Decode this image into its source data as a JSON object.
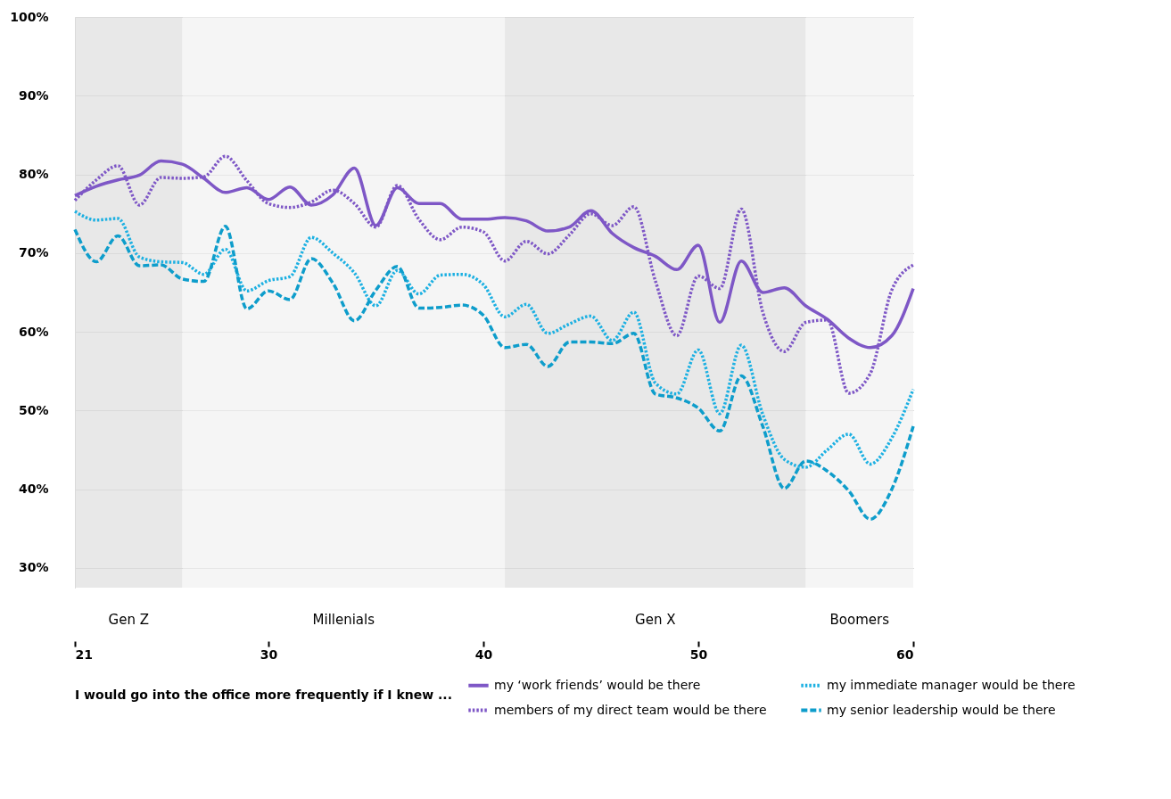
{
  "chart_data": {
    "type": "line",
    "legend_title": "I would go into the office more frequently if I knew ...",
    "x": [
      21,
      22,
      23,
      24,
      25,
      26,
      27,
      28,
      29,
      30,
      31,
      32,
      33,
      34,
      35,
      36,
      37,
      38,
      39,
      40,
      41,
      42,
      43,
      44,
      45,
      46,
      47,
      48,
      49,
      50,
      51,
      52,
      53,
      54,
      55,
      56,
      57,
      58,
      59,
      60
    ],
    "series": [
      {
        "name": "my ‘work friends’ would be there",
        "color": "#7e57c6",
        "line_style": "solid",
        "values": [
          77.3,
          78.5,
          79.3,
          79.9,
          81.7,
          81.3,
          79.5,
          77.7,
          78.3,
          76.8,
          78.4,
          76.1,
          77.4,
          80.8,
          73.5,
          78.3,
          76.3,
          76.3,
          74.3,
          74.3,
          74.5,
          74.1,
          72.8,
          73.3,
          75.4,
          72.5,
          70.7,
          69.6,
          67.9,
          71.0,
          61.2,
          69.0,
          65.0,
          65.6,
          63.3,
          61.6,
          59.2,
          58.0,
          59.5,
          65.5
        ]
      },
      {
        "name": "my immediate manager would be there",
        "color": "#1cb0e2",
        "line_style": "dotted",
        "values": [
          75.3,
          74.2,
          74.4,
          69.5,
          68.9,
          68.8,
          67.3,
          70.5,
          65.2,
          66.5,
          67.0,
          72.0,
          70.0,
          67.5,
          63.3,
          67.8,
          64.8,
          67.2,
          67.3,
          66.0,
          61.9,
          63.5,
          59.8,
          61.0,
          62.0,
          58.9,
          62.5,
          53.5,
          52.1,
          57.7,
          49.6,
          58.3,
          49.5,
          43.8,
          42.8,
          45.0,
          47.0,
          43.2,
          46.5,
          52.7
        ]
      },
      {
        "name": "members of my direct team would be there",
        "color": "#7e57c6",
        "line_style": "dotted",
        "values": [
          76.7,
          79.3,
          81.1,
          76.1,
          79.6,
          79.5,
          79.7,
          82.3,
          79.2,
          76.3,
          75.8,
          76.5,
          78.0,
          76.3,
          73.3,
          78.6,
          74.3,
          71.7,
          73.3,
          72.7,
          69.0,
          71.5,
          69.9,
          72.3,
          75.0,
          73.5,
          75.9,
          66.5,
          59.5,
          67.1,
          65.5,
          75.6,
          62.5,
          57.5,
          61.2,
          61.5,
          52.2,
          54.7,
          65.3,
          68.5
        ]
      },
      {
        "name": "my senior leadership would be there",
        "color": "#0e9dcb",
        "line_style": "dashed",
        "values": [
          73.0,
          68.9,
          72.2,
          68.4,
          68.5,
          66.7,
          66.4,
          73.4,
          62.9,
          65.2,
          64.1,
          69.3,
          66.2,
          61.4,
          65.3,
          68.3,
          63.0,
          63.1,
          63.4,
          62.1,
          58.0,
          58.4,
          55.6,
          58.7,
          58.7,
          58.5,
          59.8,
          52.1,
          51.6,
          50.3,
          47.4,
          54.4,
          48.0,
          40.1,
          43.6,
          42.3,
          39.8,
          36.2,
          40.0,
          48.0
        ]
      }
    ],
    "bands": [
      {
        "axis": "x",
        "from": 21,
        "to": 26,
        "label": "Gen Z",
        "color": "#e2e2e2"
      },
      {
        "axis": "x",
        "from": 26,
        "to": 41,
        "label": "Millenials",
        "color": "#f3f3f3"
      },
      {
        "axis": "x",
        "from": 41,
        "to": 55,
        "label": "Gen X",
        "color": "#e2e2e2"
      },
      {
        "axis": "x",
        "from": 55,
        "to": 60,
        "label": "Boomers",
        "color": "#f3f3f3"
      }
    ],
    "xlim": [
      21,
      60
    ],
    "xticks": [
      21,
      30,
      40,
      50,
      60
    ],
    "ylim": [
      27.5,
      100
    ],
    "yticks": [
      {
        "value": 30,
        "label": "30%"
      },
      {
        "value": 40,
        "label": "40%"
      },
      {
        "value": 50,
        "label": "50%"
      },
      {
        "value": 60,
        "label": "60%"
      },
      {
        "value": 70,
        "label": "70%"
      },
      {
        "value": 80,
        "label": "80%"
      },
      {
        "value": 90,
        "label": "90%"
      },
      {
        "value": 100,
        "label": "100%"
      }
    ],
    "grid": "y",
    "legend": "bottom",
    "marker": "none"
  }
}
